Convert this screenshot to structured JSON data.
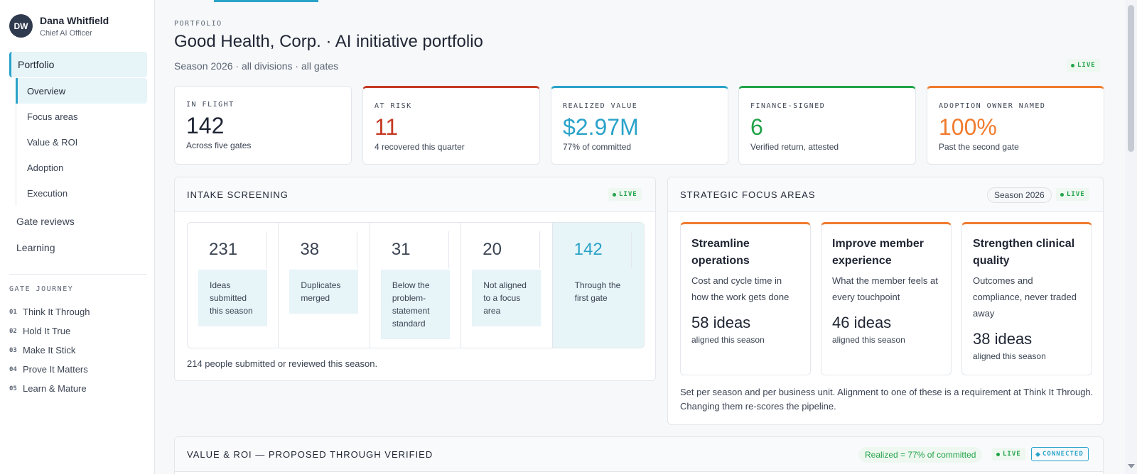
{
  "user": {
    "initials": "DW",
    "name": "Dana Whitfield",
    "role": "Chief AI Officer"
  },
  "nav": {
    "portfolio": "Portfolio",
    "portfolio_sub": [
      "Overview",
      "Focus areas",
      "Value & ROI",
      "Adoption",
      "Execution"
    ],
    "gate_reviews": "Gate reviews",
    "learning": "Learning",
    "gate_journey_title": "GATE JOURNEY",
    "gates": [
      {
        "num": "01",
        "label": "Think It Through"
      },
      {
        "num": "02",
        "label": "Hold It True"
      },
      {
        "num": "03",
        "label": "Make It Stick"
      },
      {
        "num": "04",
        "label": "Prove It Matters"
      },
      {
        "num": "05",
        "label": "Learn & Mature"
      }
    ]
  },
  "header": {
    "eyebrow": "PORTFOLIO",
    "title": "Good Health, Corp. · AI initiative portfolio",
    "subtitle": "Season 2026 · all divisions · all gates",
    "live": "LIVE"
  },
  "kpis": [
    {
      "label": "IN FLIGHT",
      "value": "142",
      "note": "Across five gates",
      "color": "#1f2533",
      "accent": "#e3e7ec"
    },
    {
      "label": "AT RISK",
      "value": "11",
      "note": "4 recovered this quarter",
      "color": "#c53a24",
      "accent": "#c53a24"
    },
    {
      "label": "REALIZED VALUE",
      "value": "$2.97M",
      "note": "77% of committed",
      "color": "#2aa3c9",
      "accent": "#2aa3c9"
    },
    {
      "label": "FINANCE-SIGNED",
      "value": "6",
      "note": "Verified return, attested",
      "color": "#22a34a",
      "accent": "#22a34a"
    },
    {
      "label": "ADOPTION OWNER NAMED",
      "value": "100%",
      "note": "Past the second gate",
      "color": "#f07b2d",
      "accent": "#f07b2d"
    }
  ],
  "intake": {
    "title": "INTAKE SCREENING",
    "live": "LIVE",
    "stages": [
      {
        "value": "231",
        "label": "Ideas submitted this season"
      },
      {
        "value": "38",
        "label": "Duplicates merged"
      },
      {
        "value": "31",
        "label": "Below the problem-statement standard"
      },
      {
        "value": "20",
        "label": "Not aligned to a focus area"
      },
      {
        "value": "142",
        "label": "Through the first gate"
      }
    ],
    "note": "214 people submitted or reviewed this season."
  },
  "focus": {
    "title": "STRATEGIC FOCUS AREAS",
    "season": "Season 2026",
    "live": "LIVE",
    "cards": [
      {
        "title": "Streamline operations",
        "desc": "Cost and cycle time in how the work gets done",
        "count": "58 ideas",
        "aligned": "aligned this season"
      },
      {
        "title": "Improve member experience",
        "desc": "What the member feels at every touchpoint",
        "count": "46 ideas",
        "aligned": "aligned this season"
      },
      {
        "title": "Strengthen clinical quality",
        "desc": "Outcomes and compliance, never traded away",
        "count": "38 ideas",
        "aligned": "aligned this season"
      }
    ],
    "note": "Set per season and per business unit. Alignment to one of these is a requirement at Think It Through. Changing them re-scores the pipeline."
  },
  "value": {
    "title": "VALUE & ROI — PROPOSED THROUGH VERIFIED",
    "realized": "Realized = 77% of committed",
    "live": "LIVE",
    "connected": "CONNECTED"
  }
}
